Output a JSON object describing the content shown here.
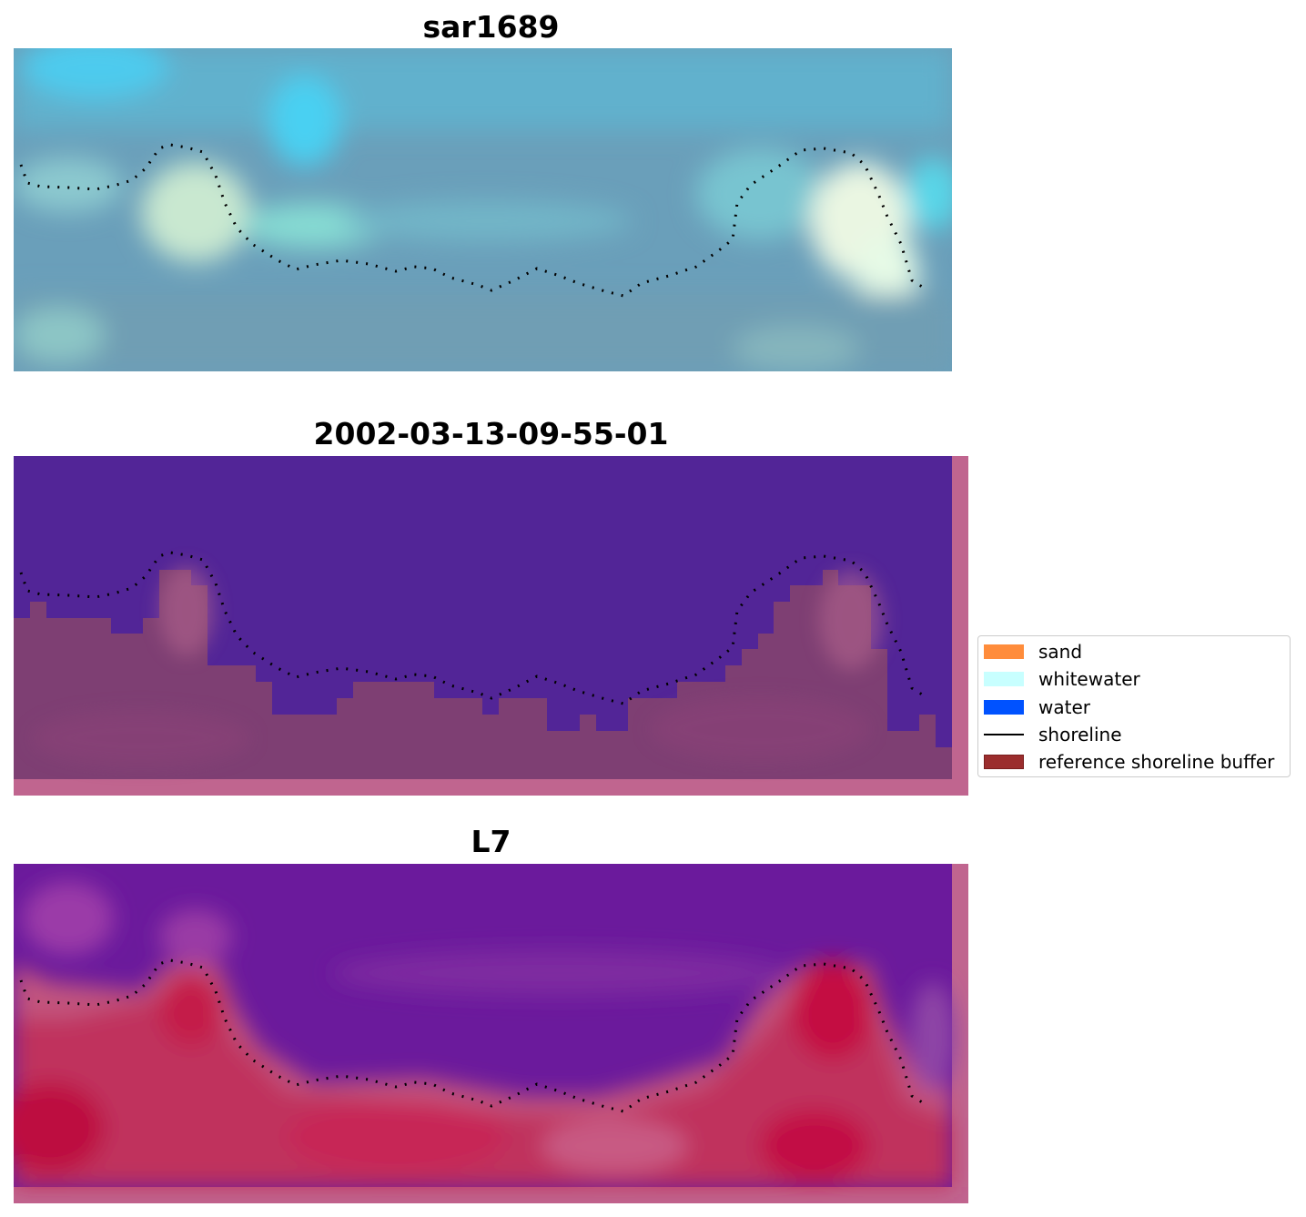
{
  "panels": [
    {
      "title": "sar1689"
    },
    {
      "title": "2002-03-13-09-55-01"
    },
    {
      "title": "L7"
    }
  ],
  "legend": {
    "items": [
      {
        "label": "sand",
        "color": "#ff8c3b",
        "kind": "patch"
      },
      {
        "label": "whitewater",
        "color": "#c8ffff",
        "kind": "patch"
      },
      {
        "label": "water",
        "color": "#0052ff",
        "kind": "patch"
      },
      {
        "label": "shoreline",
        "color": "#000000",
        "kind": "line"
      },
      {
        "label": "reference shoreline buffer",
        "color": "#9b2d2d",
        "kind": "patch"
      }
    ]
  }
}
